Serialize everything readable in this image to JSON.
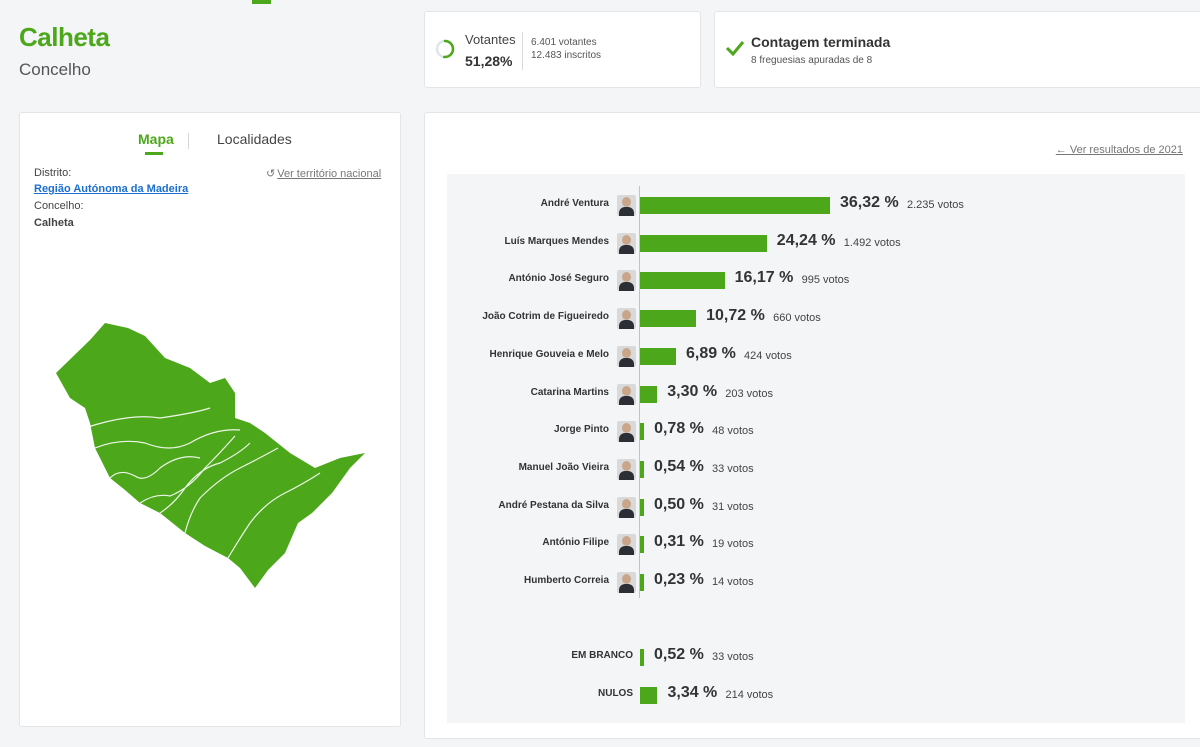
{
  "header": {
    "title": "Calheta",
    "subtitle": "Concelho"
  },
  "votantes": {
    "label": "Votantes",
    "percent": "51,28%",
    "votantes": "6.401 votantes",
    "inscritos": "12.483 inscritos",
    "progress": 0.5128
  },
  "contagem": {
    "title": "Contagem terminada",
    "subtitle": "8 freguesias apuradas de 8"
  },
  "map_panel": {
    "tabs": [
      "Mapa",
      "Localidades"
    ],
    "active_tab": "Mapa",
    "distrito_label": "Distrito:",
    "distrito_value": "Região Autónoma da Madeira",
    "concelho_label": "Concelho:",
    "concelho_value": "Calheta",
    "ver_nacional": "Ver território nacional"
  },
  "results": {
    "ver_2021": "Ver resultados de 2021",
    "candidates": [
      {
        "name": "André Ventura",
        "pct": "36,32 %",
        "votes": "2.235 votos",
        "share": 36.32
      },
      {
        "name": "Luís Marques Mendes",
        "pct": "24,24 %",
        "votes": "1.492 votos",
        "share": 24.24
      },
      {
        "name": "António José Seguro",
        "pct": "16,17 %",
        "votes": "995 votos",
        "share": 16.17
      },
      {
        "name": "João Cotrim de Figueiredo",
        "pct": "10,72 %",
        "votes": "660 votos",
        "share": 10.72
      },
      {
        "name": "Henrique Gouveia e Melo",
        "pct": "6,89 %",
        "votes": "424 votos",
        "share": 6.89
      },
      {
        "name": "Catarina Martins",
        "pct": "3,30 %",
        "votes": "203 votos",
        "share": 3.3
      },
      {
        "name": "Jorge Pinto",
        "pct": "0,78 %",
        "votes": "48 votos",
        "share": 0.78
      },
      {
        "name": "Manuel João Vieira",
        "pct": "0,54 %",
        "votes": "33 votos",
        "share": 0.54
      },
      {
        "name": "André Pestana da Silva",
        "pct": "0,50 %",
        "votes": "31 votos",
        "share": 0.5
      },
      {
        "name": "António Filipe",
        "pct": "0,31 %",
        "votes": "19 votos",
        "share": 0.31
      },
      {
        "name": "Humberto Correia",
        "pct": "0,23 %",
        "votes": "14 votos",
        "share": 0.23
      }
    ],
    "others": [
      {
        "name": "EM BRANCO",
        "pct": "0,52 %",
        "votes": "33 votos",
        "share": 0.52
      },
      {
        "name": "NULOS",
        "pct": "3,34 %",
        "votes": "214 votos",
        "share": 3.34
      }
    ]
  },
  "colors": {
    "accent": "#4ca71a",
    "link": "#1a6fd0"
  }
}
